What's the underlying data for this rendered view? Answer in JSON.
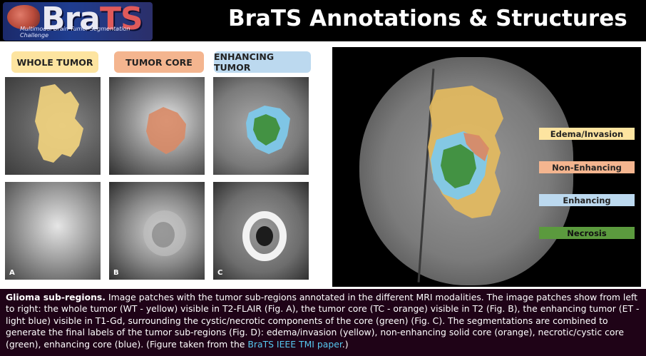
{
  "logo": {
    "text_a": "Bra",
    "text_b": "TS",
    "subtitle": "Multimodal Brain Tumor Segmentation Challenge"
  },
  "title": "BraTS Annotations & Structures",
  "tags": {
    "whole_tumor": "WHOLE TUMOR",
    "tumor_core": "TUMOR CORE",
    "enhancing_tumor": "ENHANCING TUMOR"
  },
  "panel_letters": {
    "a": "A",
    "b": "B",
    "c": "C"
  },
  "legend": {
    "edema": "Edema/Invasion",
    "non_enhancing": "Non-Enhancing",
    "enhancing": "Enhancing",
    "necrosis": "Necrosis"
  },
  "colors": {
    "yellow": "#fde4a0",
    "orange": "#f4b58f",
    "blue": "#bcd9ef",
    "green": "#5b9a3e"
  },
  "caption": {
    "heading": "Glioma sub-regions.",
    "body": " Image patches with the tumor sub-regions annotated in the different MRI modalities. The image patches show from left to right: the whole tumor (WT - yellow) visible in T2-FLAIR (Fig. A), the tumor core (TC - orange) visible in T2 (Fig. B), the enhancing tumor (ET - light blue) visible in T1-Gd, surrounding the cystic/necrotic components of the core (green) (Fig. C). The segmentations are combined to generate the final labels of the tumor sub-regions (Fig. D): edema/invasion (yellow), non-enhancing solid core (orange), necrotic/cystic core (green), enhancing core (blue). (Figure taken from the ",
    "link": "BraTS IEEE TMI paper",
    "tail": ".)"
  }
}
